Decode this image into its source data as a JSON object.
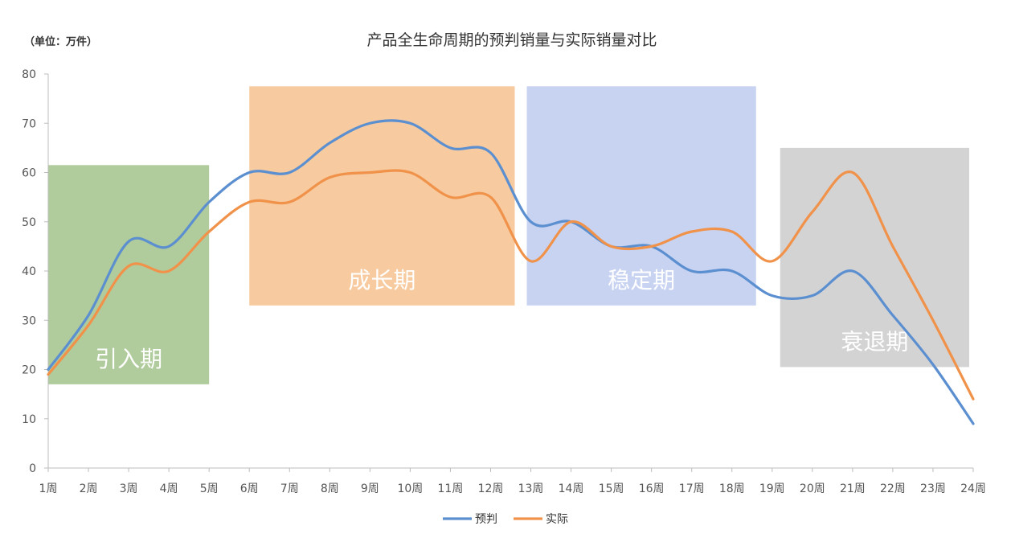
{
  "chart_data": {
    "type": "line",
    "title": "产品全生命周期的预判销量与实际销量对比",
    "unit_label": "（单位：万件）",
    "categories": [
      "1周",
      "2周",
      "3周",
      "4周",
      "5周",
      "6周",
      "7周",
      "8周",
      "9周",
      "10周",
      "11周",
      "12周",
      "13周",
      "14周",
      "15周",
      "16周",
      "17周",
      "18周",
      "19周",
      "20周",
      "21周",
      "22周",
      "23周",
      "24周"
    ],
    "series": [
      {
        "name": "预判",
        "color": "#5b8fd0",
        "values": [
          20,
          31,
          46,
          45,
          54,
          60,
          60,
          66,
          70,
          70,
          65,
          64,
          50,
          50,
          45,
          45,
          40,
          40,
          35,
          35,
          40,
          31,
          21,
          9
        ]
      },
      {
        "name": "实际",
        "color": "#f0924a",
        "values": [
          19,
          29,
          41,
          40,
          48,
          54,
          54,
          59,
          60,
          60,
          55,
          55,
          42,
          50,
          45,
          45,
          48,
          48,
          42,
          52,
          60,
          45,
          30,
          14
        ]
      }
    ],
    "ylim": [
      0,
      80
    ],
    "yticks": [
      0,
      10,
      20,
      30,
      40,
      50,
      60,
      70,
      80
    ],
    "grid": false,
    "legend_position": "bottom",
    "phases": [
      {
        "label": "引入期",
        "color": "#6fa04a",
        "from_week": 1,
        "to_week": 5,
        "y_bottom": 17,
        "y_top": 61.5
      },
      {
        "label": "成长期",
        "color": "#f0a050",
        "from_week": 6,
        "to_week": 12.6,
        "y_bottom": 33,
        "y_top": 77.5
      },
      {
        "label": "稳定期",
        "color": "#9aaee8",
        "from_week": 12.9,
        "to_week": 18.6,
        "y_bottom": 33,
        "y_top": 77.5
      },
      {
        "label": "衰退期",
        "color": "#b0aeb0",
        "from_week": 19.2,
        "to_week": 23.9,
        "y_bottom": 20.5,
        "y_top": 65
      }
    ]
  }
}
